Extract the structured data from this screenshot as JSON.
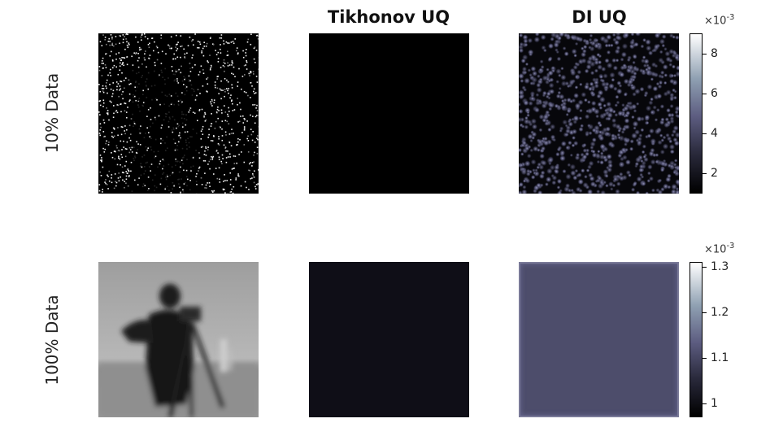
{
  "titles": [
    "Tikhonov UQ",
    "DI UQ"
  ],
  "row_labels": [
    "10% Data",
    "100% Data"
  ],
  "colorbars": [
    {
      "scale_base": "×10",
      "scale_exp": "-3",
      "ticks": [
        2,
        4,
        6,
        8
      ],
      "tick_labels": [
        "2",
        "4",
        "6",
        "8"
      ],
      "range": [
        1.0,
        9.0
      ]
    },
    {
      "scale_base": "×10",
      "scale_exp": "-3",
      "ticks": [
        1.0,
        1.1,
        1.2,
        1.3
      ],
      "tick_labels": [
        "1",
        "1.1",
        "1.2",
        "1.3"
      ],
      "range": [
        0.97,
        1.31
      ]
    }
  ],
  "colors": {
    "tikhonov_10": "#000000",
    "tikhonov_100": "#0f0e17",
    "di_100": "#4d4d6b",
    "di_100_border": "#7a7a98"
  },
  "chart_data": {
    "type": "heatmap",
    "title": "",
    "panels": [
      {
        "row": "10% Data",
        "column": "",
        "content": "sparse sampled image (white dots on black)"
      },
      {
        "row": "10% Data",
        "column": "Tikhonov UQ",
        "content": "uniform near-zero"
      },
      {
        "row": "10% Data",
        "column": "DI UQ",
        "content": "speckled uncertainty map, values ~1e-3 to 9e-3"
      },
      {
        "row": "100% Data",
        "column": "",
        "content": "blurred cameraman image (grayscale)"
      },
      {
        "row": "100% Data",
        "column": "Tikhonov UQ",
        "content": "uniform dark"
      },
      {
        "row": "100% Data",
        "column": "DI UQ",
        "content": "near-uniform ~1.07e-3 with brighter border"
      }
    ]
  }
}
